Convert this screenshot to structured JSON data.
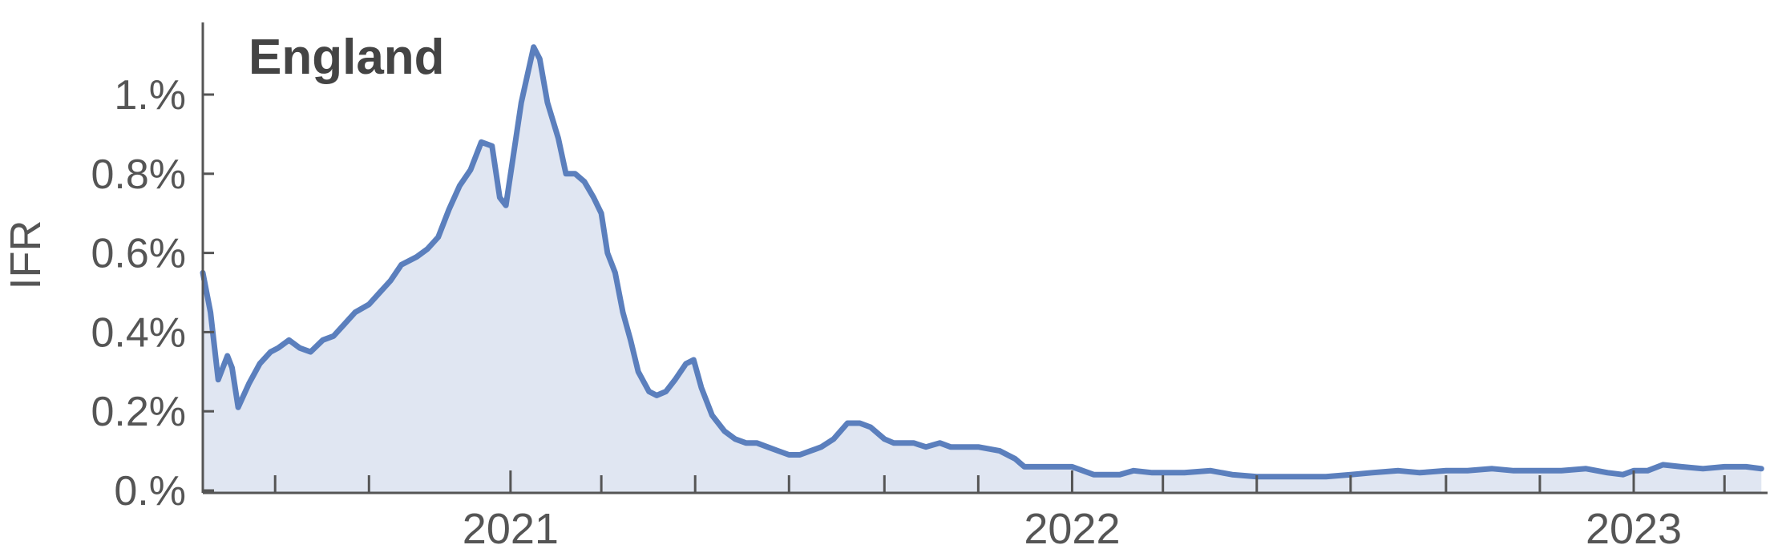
{
  "chart_data": {
    "type": "area",
    "title": "England",
    "xlabel": "",
    "ylabel": "IFR",
    "y_unit": "%",
    "ylim": [
      0,
      1.15
    ],
    "y_ticks": [
      0.0,
      0.2,
      0.4,
      0.6,
      0.8,
      1.0
    ],
    "y_tick_labels": [
      "0.%",
      "0.2%",
      "0.4%",
      "0.6%",
      "0.8%",
      "1.%"
    ],
    "xlim": [
      "2020-06-15",
      "2023-03-29"
    ],
    "x_major_ticks": [
      "2021-01-01",
      "2022-01-01",
      "2023-01-01"
    ],
    "x_major_labels": [
      "2021",
      "2022",
      "2023"
    ],
    "x_minor_ticks": [
      "2020-08-01",
      "2020-10-01",
      "2021-03-01",
      "2021-05-01",
      "2021-07-01",
      "2021-09-01",
      "2021-11-01",
      "2022-03-01",
      "2022-05-01",
      "2022-07-01",
      "2022-09-01",
      "2022-11-01",
      "2023-03-01"
    ],
    "grid": false,
    "colors": {
      "line": "#5b7fbd",
      "fill": "#e0e6f2",
      "axis": "#555555",
      "title": "#444444"
    },
    "series": [
      {
        "x": [
          "2020-06-15",
          "2020-06-20",
          "2020-06-25",
          "2020-07-01",
          "2020-07-04",
          "2020-07-08",
          "2020-07-15",
          "2020-07-22",
          "2020-07-29",
          "2020-08-03",
          "2020-08-10",
          "2020-08-17",
          "2020-08-24",
          "2020-09-01",
          "2020-09-08",
          "2020-09-15",
          "2020-09-22",
          "2020-10-01",
          "2020-10-08",
          "2020-10-15",
          "2020-10-22",
          "2020-11-01",
          "2020-11-08",
          "2020-11-15",
          "2020-11-22",
          "2020-11-29",
          "2020-12-06",
          "2020-12-13",
          "2020-12-20",
          "2020-12-25",
          "2020-12-29",
          "2021-01-03",
          "2021-01-08",
          "2021-01-12",
          "2021-01-16",
          "2021-01-20",
          "2021-01-25",
          "2021-02-01",
          "2021-02-06",
          "2021-02-12",
          "2021-02-18",
          "2021-02-24",
          "2021-03-01",
          "2021-03-05",
          "2021-03-10",
          "2021-03-15",
          "2021-03-20",
          "2021-03-25",
          "2021-04-01",
          "2021-04-06",
          "2021-04-12",
          "2021-04-18",
          "2021-04-25",
          "2021-04-30",
          "2021-05-05",
          "2021-05-12",
          "2021-05-20",
          "2021-05-27",
          "2021-06-03",
          "2021-06-10",
          "2021-06-17",
          "2021-06-24",
          "2021-07-01",
          "2021-07-08",
          "2021-07-15",
          "2021-07-22",
          "2021-07-30",
          "2021-08-08",
          "2021-08-16",
          "2021-08-23",
          "2021-09-01",
          "2021-09-07",
          "2021-09-14",
          "2021-09-20",
          "2021-09-28",
          "2021-10-07",
          "2021-10-14",
          "2021-10-25",
          "2021-11-01",
          "2021-11-15",
          "2021-11-25",
          "2021-12-01",
          "2021-12-10",
          "2021-12-20",
          "2022-01-01",
          "2022-01-15",
          "2022-02-01",
          "2022-02-10",
          "2022-02-22",
          "2022-03-01",
          "2022-03-15",
          "2022-04-01",
          "2022-04-15",
          "2022-05-01",
          "2022-05-15",
          "2022-06-01",
          "2022-06-15",
          "2022-07-01",
          "2022-07-15",
          "2022-08-01",
          "2022-08-15",
          "2022-09-01",
          "2022-09-15",
          "2022-10-01",
          "2022-10-15",
          "2022-11-01",
          "2022-11-15",
          "2022-12-01",
          "2022-12-15",
          "2022-12-25",
          "2023-01-01",
          "2023-01-10",
          "2023-01-20",
          "2023-02-01",
          "2023-02-15",
          "2023-03-01",
          "2023-03-15",
          "2023-03-25"
        ],
        "values": [
          0.55,
          0.45,
          0.28,
          0.34,
          0.31,
          0.21,
          0.27,
          0.32,
          0.35,
          0.36,
          0.38,
          0.36,
          0.35,
          0.38,
          0.39,
          0.42,
          0.45,
          0.47,
          0.5,
          0.53,
          0.57,
          0.59,
          0.61,
          0.64,
          0.71,
          0.77,
          0.81,
          0.88,
          0.87,
          0.74,
          0.72,
          0.85,
          0.98,
          1.05,
          1.12,
          1.09,
          0.98,
          0.89,
          0.8,
          0.8,
          0.78,
          0.74,
          0.7,
          0.6,
          0.55,
          0.45,
          0.38,
          0.3,
          0.25,
          0.24,
          0.25,
          0.28,
          0.32,
          0.33,
          0.26,
          0.19,
          0.15,
          0.13,
          0.12,
          0.12,
          0.11,
          0.1,
          0.09,
          0.09,
          0.1,
          0.11,
          0.13,
          0.17,
          0.17,
          0.16,
          0.13,
          0.12,
          0.12,
          0.12,
          0.11,
          0.12,
          0.11,
          0.11,
          0.11,
          0.1,
          0.08,
          0.06,
          0.06,
          0.06,
          0.06,
          0.04,
          0.04,
          0.05,
          0.045,
          0.045,
          0.045,
          0.05,
          0.04,
          0.035,
          0.035,
          0.035,
          0.035,
          0.04,
          0.045,
          0.05,
          0.045,
          0.05,
          0.05,
          0.055,
          0.05,
          0.05,
          0.05,
          0.055,
          0.045,
          0.04,
          0.05,
          0.05,
          0.065,
          0.06,
          0.055,
          0.06,
          0.06,
          0.055
        ]
      }
    ]
  }
}
